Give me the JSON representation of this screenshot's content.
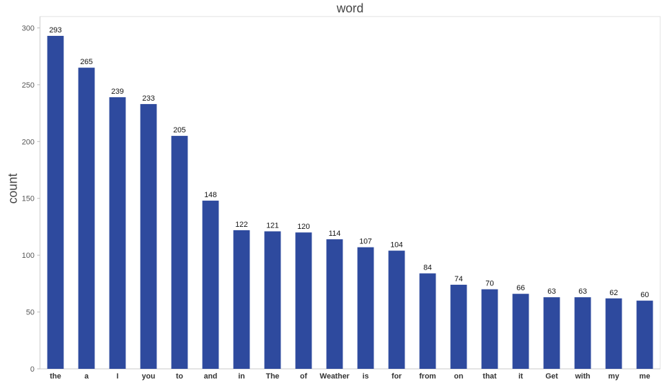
{
  "chart_data": {
    "type": "bar",
    "title": "word",
    "xlabel": "",
    "ylabel": "count",
    "ylim": [
      0,
      310
    ],
    "yticks": [
      0,
      50,
      100,
      150,
      200,
      250,
      300
    ],
    "grid": false,
    "legend": "none",
    "bar_color": "#2e4a9e",
    "categories": [
      "the",
      "a",
      "I",
      "you",
      "to",
      "and",
      "in",
      "The",
      "of",
      "Weather",
      "is",
      "for",
      "from",
      "on",
      "that",
      "it",
      "Get",
      "with",
      "my",
      "me"
    ],
    "values": [
      293,
      265,
      239,
      233,
      205,
      148,
      122,
      121,
      120,
      114,
      107,
      104,
      84,
      74,
      70,
      66,
      63,
      63,
      62,
      60
    ],
    "data_labels": [
      "293",
      "265",
      "239",
      "233",
      "205",
      "148",
      "122",
      "121",
      "120",
      "114",
      "107",
      "104",
      "84",
      "74",
      "70",
      "66",
      "63",
      "63",
      "62",
      "60"
    ]
  }
}
